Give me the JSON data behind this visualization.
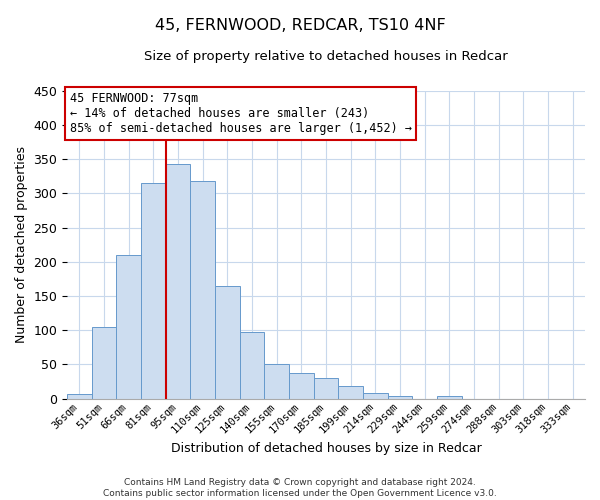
{
  "title": "45, FERNWOOD, REDCAR, TS10 4NF",
  "subtitle": "Size of property relative to detached houses in Redcar",
  "xlabel": "Distribution of detached houses by size in Redcar",
  "ylabel": "Number of detached properties",
  "bar_labels": [
    "36sqm",
    "51sqm",
    "66sqm",
    "81sqm",
    "95sqm",
    "110sqm",
    "125sqm",
    "140sqm",
    "155sqm",
    "170sqm",
    "185sqm",
    "199sqm",
    "214sqm",
    "229sqm",
    "244sqm",
    "259sqm",
    "274sqm",
    "288sqm",
    "303sqm",
    "318sqm",
    "333sqm"
  ],
  "bar_values": [
    7,
    105,
    210,
    315,
    343,
    318,
    165,
    97,
    50,
    37,
    30,
    19,
    8,
    4,
    0,
    4,
    0,
    0,
    0,
    0,
    0
  ],
  "bar_color": "#cdddf0",
  "bar_edge_color": "#6699cc",
  "property_line_color": "#cc0000",
  "annotation_title": "45 FERNWOOD: 77sqm",
  "annotation_line1": "← 14% of detached houses are smaller (243)",
  "annotation_line2": "85% of semi-detached houses are larger (1,452) →",
  "annotation_box_color": "white",
  "annotation_box_edge_color": "#cc0000",
  "ylim": [
    0,
    450
  ],
  "yticks": [
    0,
    50,
    100,
    150,
    200,
    250,
    300,
    350,
    400,
    450
  ],
  "footer_line1": "Contains HM Land Registry data © Crown copyright and database right 2024.",
  "footer_line2": "Contains public sector information licensed under the Open Government Licence v3.0.",
  "background_color": "#ffffff",
  "grid_color": "#c8d8ec"
}
